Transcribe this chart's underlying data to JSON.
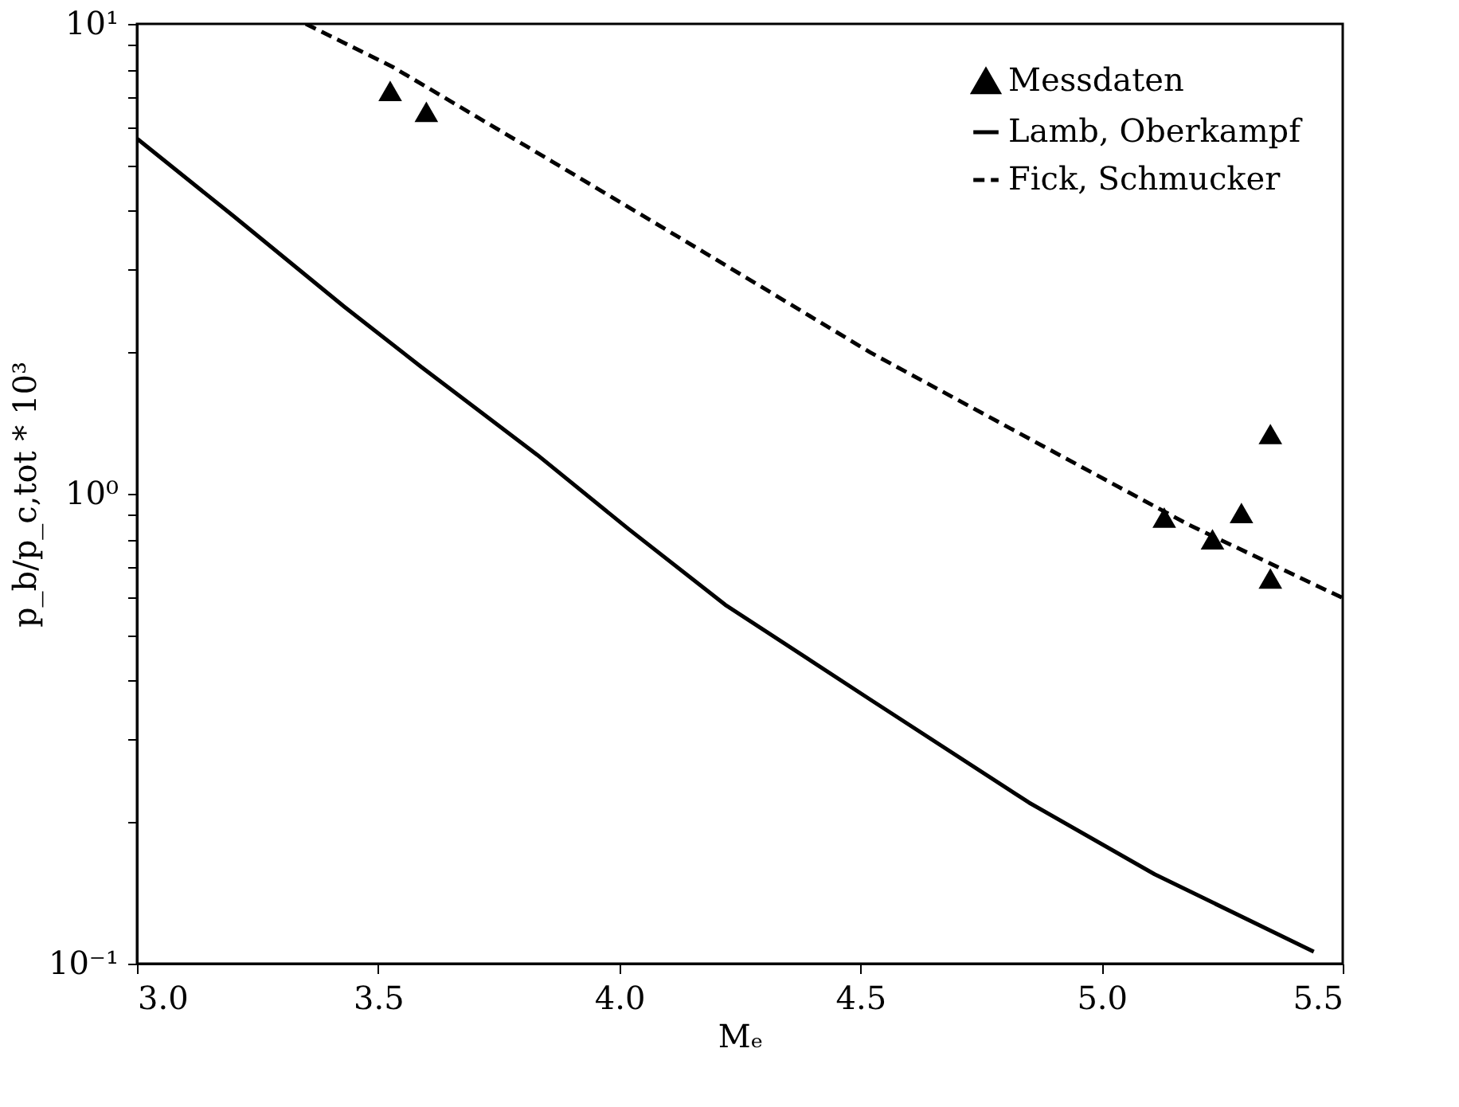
{
  "chart_data": {
    "type": "line",
    "xlabel": "Mₑ",
    "ylabel": "p_b/p_c,tot * 10³",
    "xlim": [
      3.0,
      5.5
    ],
    "ylim": [
      0.1,
      10
    ],
    "log": "y",
    "grid": false,
    "legend": "top right",
    "xticks": [
      {
        "value": 3.0,
        "label": "3.0"
      },
      {
        "value": 3.5,
        "label": "3.5"
      },
      {
        "value": 4.0,
        "label": "4.0"
      },
      {
        "value": 4.5,
        "label": "4.5"
      },
      {
        "value": 5.0,
        "label": "5.0"
      },
      {
        "value": 5.5,
        "label": "5.5"
      }
    ],
    "yticks": [
      {
        "value": 0.1,
        "label": "10⁻¹"
      },
      {
        "value": 0.2,
        "label": null
      },
      {
        "value": 0.3,
        "label": null
      },
      {
        "value": 0.4,
        "label": null
      },
      {
        "value": 0.5,
        "label": null
      },
      {
        "value": 0.6,
        "label": null
      },
      {
        "value": 0.7,
        "label": null
      },
      {
        "value": 0.8,
        "label": null
      },
      {
        "value": 0.9,
        "label": null
      },
      {
        "value": 1,
        "label": "10⁰"
      },
      {
        "value": 2,
        "label": null
      },
      {
        "value": 3,
        "label": null
      },
      {
        "value": 4,
        "label": null
      },
      {
        "value": 5,
        "label": null
      },
      {
        "value": 6,
        "label": null
      },
      {
        "value": 7,
        "label": null
      },
      {
        "value": 8,
        "label": null
      },
      {
        "value": 9,
        "label": null
      },
      {
        "value": 10,
        "label": "10¹"
      }
    ],
    "series": [
      {
        "name": "Messdaten",
        "type": "scatter",
        "marker": "triangle",
        "color": "#000000",
        "x": [
          3.525,
          3.6,
          5.13,
          5.23,
          5.29,
          5.35,
          5.35
        ],
        "values": [
          7.2,
          6.5,
          0.89,
          0.8,
          0.91,
          1.34,
          0.66
        ]
      },
      {
        "name": "Lamb, Oberkampf",
        "line_style": "solid",
        "marker": "none",
        "color": "#000000",
        "x": [
          3.0,
          3.2,
          3.43,
          3.59,
          3.83,
          4.02,
          4.22,
          4.52,
          4.85,
          5.11,
          5.44
        ],
        "values": [
          5.7,
          3.9,
          2.5,
          1.86,
          1.21,
          0.84,
          0.58,
          0.365,
          0.22,
          0.155,
          0.106
        ]
      },
      {
        "name": "Fick, Schmucker",
        "line_style": "dashed",
        "marker": "none",
        "color": "#000000",
        "x": [
          3.35,
          3.53,
          3.86,
          4.19,
          4.52,
          4.85,
          5.18,
          5.5
        ],
        "values": [
          10,
          8.1,
          5.1,
          3.2,
          2.0,
          1.31,
          0.86,
          0.6
        ]
      }
    ]
  }
}
